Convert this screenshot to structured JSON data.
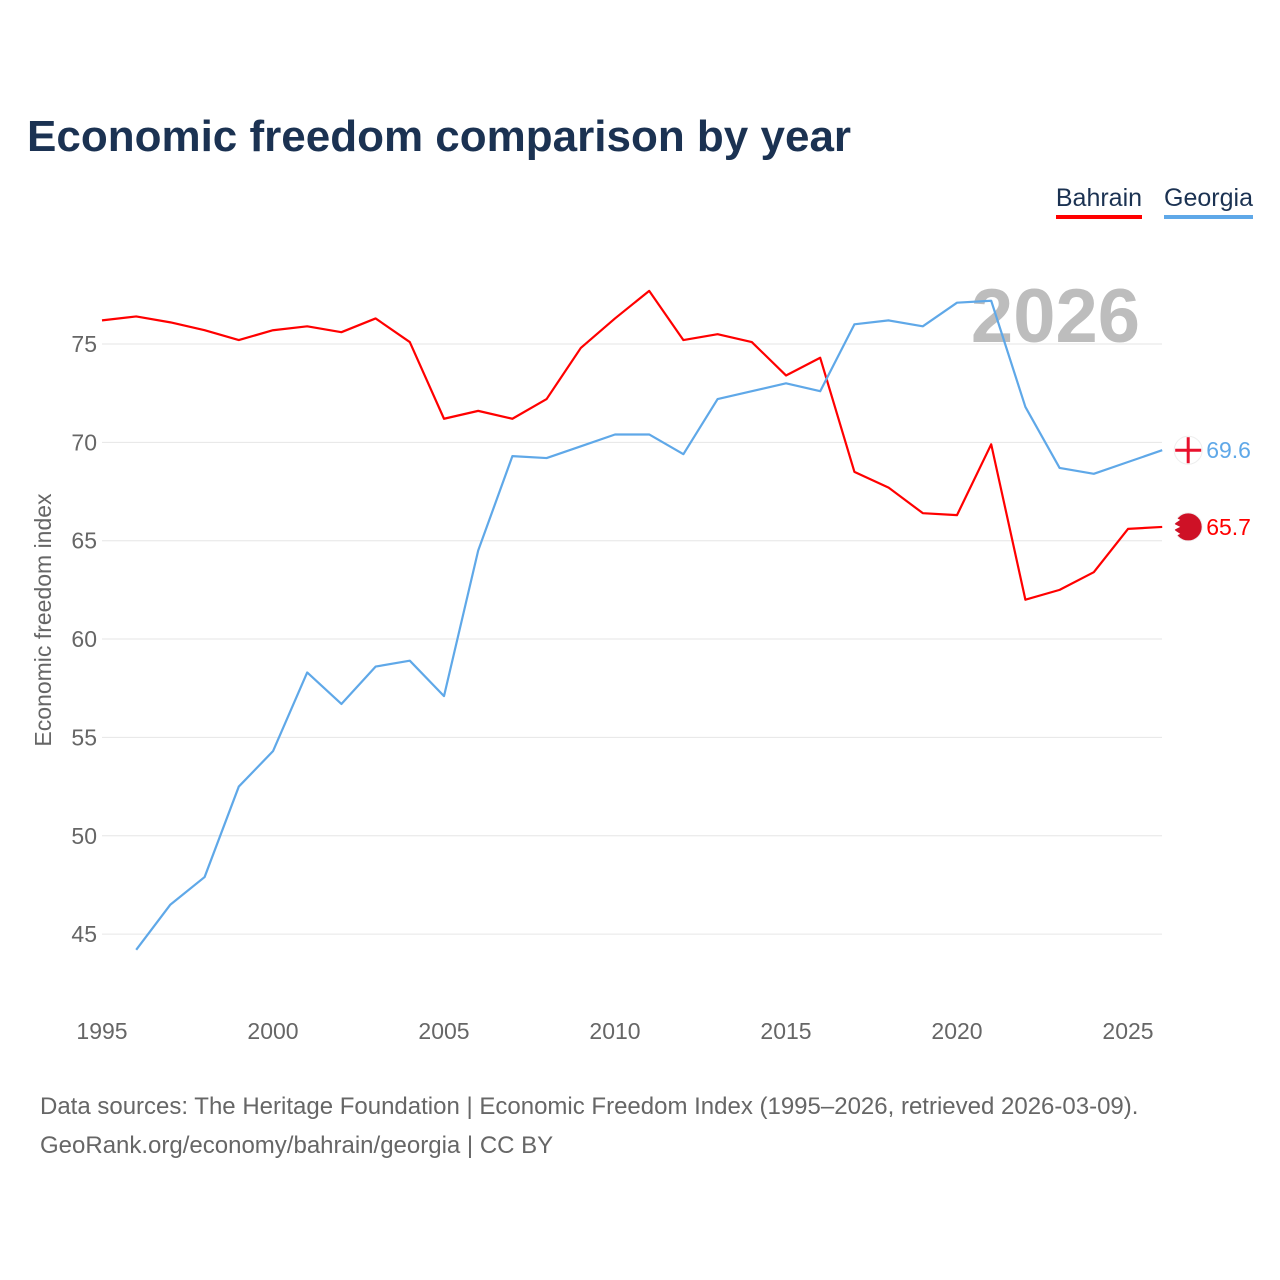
{
  "chart_data": {
    "type": "line",
    "title": "Economic freedom comparison by year",
    "xlabel": "",
    "ylabel": "Economic freedom index",
    "xlim": [
      1995,
      2026
    ],
    "ylim": [
      42,
      79
    ],
    "x_ticks": [
      1995,
      2000,
      2005,
      2010,
      2015,
      2020,
      2025
    ],
    "y_ticks": [
      45,
      50,
      55,
      60,
      65,
      70,
      75
    ],
    "grid": true,
    "legend_position": "top-right",
    "watermark_year": "2026",
    "series": [
      {
        "name": "Bahrain",
        "color": "#ff0000",
        "end_label": "65.7",
        "x": [
          1995,
          1996,
          1997,
          1998,
          1999,
          2000,
          2001,
          2002,
          2003,
          2004,
          2005,
          2006,
          2007,
          2008,
          2009,
          2010,
          2011,
          2012,
          2013,
          2014,
          2015,
          2016,
          2017,
          2018,
          2019,
          2020,
          2021,
          2022,
          2023,
          2024,
          2025,
          2026
        ],
        "values": [
          76.2,
          76.4,
          76.1,
          75.7,
          75.2,
          75.7,
          75.9,
          75.6,
          76.3,
          75.1,
          71.2,
          71.6,
          71.2,
          72.2,
          74.8,
          76.3,
          77.7,
          75.2,
          75.5,
          75.1,
          73.4,
          74.3,
          68.5,
          67.7,
          66.4,
          66.3,
          69.9,
          62.0,
          62.5,
          63.4,
          65.6,
          65.7
        ]
      },
      {
        "name": "Georgia",
        "color": "#5fa8e8",
        "end_label": "69.6",
        "x": [
          1996,
          1997,
          1998,
          1999,
          2000,
          2001,
          2002,
          2003,
          2004,
          2005,
          2006,
          2007,
          2008,
          2009,
          2010,
          2011,
          2012,
          2013,
          2014,
          2015,
          2016,
          2017,
          2018,
          2019,
          2020,
          2021,
          2022,
          2023,
          2024,
          2025,
          2026
        ],
        "values": [
          44.2,
          46.5,
          47.9,
          52.5,
          54.3,
          58.3,
          56.7,
          58.6,
          58.9,
          57.1,
          64.5,
          69.3,
          69.2,
          69.8,
          70.4,
          70.4,
          69.4,
          72.2,
          72.6,
          73.0,
          72.6,
          76.0,
          76.2,
          75.9,
          77.1,
          77.2,
          71.8,
          68.7,
          68.4,
          69.0,
          69.6
        ]
      }
    ]
  },
  "footer": {
    "line1": "Data sources: The Heritage Foundation | Economic Freedom Index (1995–2026, retrieved 2026-03-09).",
    "line2": "GeoRank.org/economy/bahrain/georgia | CC BY"
  }
}
